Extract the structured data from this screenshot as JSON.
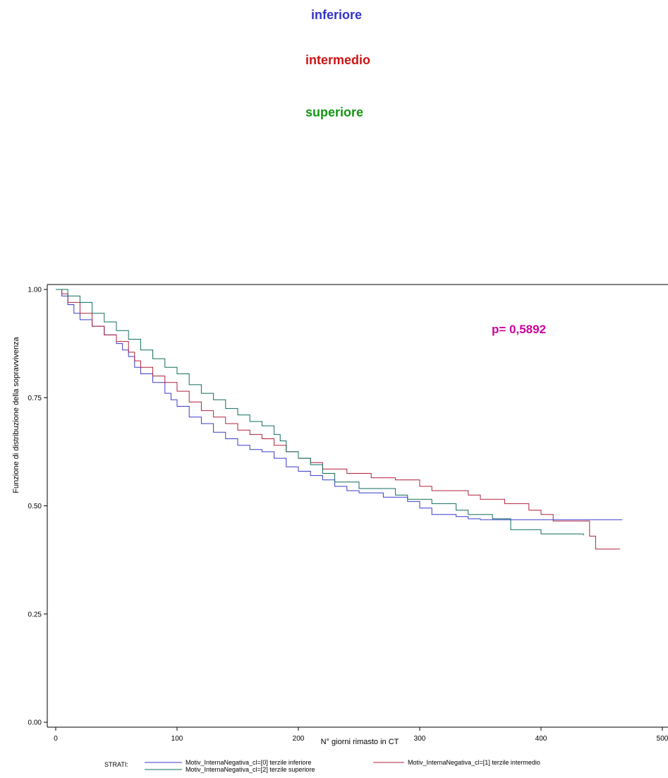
{
  "labels": {
    "inferiore": "inferiore",
    "intermedio": "intermedio",
    "superiore": "superiore"
  },
  "colors": {
    "inferiore": "#3333cc",
    "intermedio": "#cc1414",
    "superiore": "#149614",
    "pvalue": "#cc0099",
    "series0": "#3a3acc",
    "series1": "#b0203a",
    "series2": "#0e6e5e"
  },
  "chart_data": {
    "type": "line",
    "ylabel": "Funzione di distribuzione della sopravvivenza",
    "xlabel": "N° giorni rimasto in CT",
    "xlim": [
      0,
      500
    ],
    "ylim": [
      0,
      1
    ],
    "xticks": [
      "0",
      "100",
      "200",
      "300",
      "400",
      "500"
    ],
    "yticks": [
      "0.00",
      "0.25",
      "0.50",
      "0.75",
      "1.00"
    ],
    "annotation": "p= 0,5892",
    "legend_title": "STRATI:",
    "legend_position": "bottom",
    "series": [
      {
        "name": "Motiv_InternaNegativa_cl=[0] terzile inferiore",
        "step": true,
        "points": [
          [
            0,
            1.0
          ],
          [
            5,
            0.985
          ],
          [
            10,
            0.965
          ],
          [
            15,
            0.945
          ],
          [
            20,
            0.93
          ],
          [
            30,
            0.915
          ],
          [
            40,
            0.895
          ],
          [
            50,
            0.875
          ],
          [
            55,
            0.86
          ],
          [
            60,
            0.845
          ],
          [
            65,
            0.82
          ],
          [
            70,
            0.805
          ],
          [
            80,
            0.785
          ],
          [
            90,
            0.76
          ],
          [
            95,
            0.745
          ],
          [
            100,
            0.73
          ],
          [
            110,
            0.705
          ],
          [
            120,
            0.69
          ],
          [
            130,
            0.67
          ],
          [
            140,
            0.655
          ],
          [
            150,
            0.64
          ],
          [
            160,
            0.63
          ],
          [
            170,
            0.625
          ],
          [
            180,
            0.61
          ],
          [
            190,
            0.59
          ],
          [
            200,
            0.58
          ],
          [
            210,
            0.57
          ],
          [
            220,
            0.56
          ],
          [
            230,
            0.545
          ],
          [
            240,
            0.535
          ],
          [
            250,
            0.53
          ],
          [
            270,
            0.52
          ],
          [
            290,
            0.51
          ],
          [
            300,
            0.495
          ],
          [
            310,
            0.48
          ],
          [
            330,
            0.475
          ],
          [
            340,
            0.47
          ],
          [
            350,
            0.468
          ],
          [
            467,
            0.468
          ]
        ]
      },
      {
        "name": "Motiv_InternaNegativa_cl=[1] terzile intermedio",
        "step": true,
        "points": [
          [
            0,
            1.0
          ],
          [
            5,
            0.99
          ],
          [
            10,
            0.97
          ],
          [
            20,
            0.945
          ],
          [
            30,
            0.915
          ],
          [
            40,
            0.895
          ],
          [
            50,
            0.88
          ],
          [
            60,
            0.855
          ],
          [
            65,
            0.835
          ],
          [
            70,
            0.82
          ],
          [
            80,
            0.8
          ],
          [
            90,
            0.785
          ],
          [
            100,
            0.765
          ],
          [
            110,
            0.74
          ],
          [
            120,
            0.72
          ],
          [
            130,
            0.705
          ],
          [
            140,
            0.69
          ],
          [
            150,
            0.675
          ],
          [
            160,
            0.665
          ],
          [
            170,
            0.655
          ],
          [
            180,
            0.64
          ],
          [
            190,
            0.625
          ],
          [
            200,
            0.61
          ],
          [
            210,
            0.6
          ],
          [
            220,
            0.585
          ],
          [
            240,
            0.575
          ],
          [
            260,
            0.565
          ],
          [
            280,
            0.56
          ],
          [
            300,
            0.545
          ],
          [
            310,
            0.535
          ],
          [
            340,
            0.525
          ],
          [
            350,
            0.515
          ],
          [
            370,
            0.505
          ],
          [
            390,
            0.49
          ],
          [
            400,
            0.48
          ],
          [
            410,
            0.465
          ],
          [
            440,
            0.43
          ],
          [
            445,
            0.4
          ],
          [
            465,
            0.4
          ]
        ]
      },
      {
        "name": "Motiv_InternaNegativa_cl=[2] terzile superiore",
        "step": true,
        "points": [
          [
            0,
            1.0
          ],
          [
            10,
            0.985
          ],
          [
            20,
            0.97
          ],
          [
            30,
            0.945
          ],
          [
            40,
            0.925
          ],
          [
            50,
            0.905
          ],
          [
            60,
            0.885
          ],
          [
            70,
            0.86
          ],
          [
            80,
            0.84
          ],
          [
            90,
            0.82
          ],
          [
            100,
            0.805
          ],
          [
            110,
            0.78
          ],
          [
            120,
            0.76
          ],
          [
            130,
            0.745
          ],
          [
            140,
            0.725
          ],
          [
            150,
            0.71
          ],
          [
            160,
            0.695
          ],
          [
            170,
            0.685
          ],
          [
            180,
            0.665
          ],
          [
            185,
            0.65
          ],
          [
            190,
            0.625
          ],
          [
            200,
            0.61
          ],
          [
            210,
            0.595
          ],
          [
            220,
            0.575
          ],
          [
            230,
            0.555
          ],
          [
            250,
            0.54
          ],
          [
            270,
            0.54
          ],
          [
            280,
            0.525
          ],
          [
            290,
            0.515
          ],
          [
            310,
            0.505
          ],
          [
            330,
            0.49
          ],
          [
            340,
            0.48
          ],
          [
            360,
            0.47
          ],
          [
            375,
            0.445
          ],
          [
            400,
            0.435
          ],
          [
            435,
            0.432
          ]
        ]
      }
    ]
  }
}
